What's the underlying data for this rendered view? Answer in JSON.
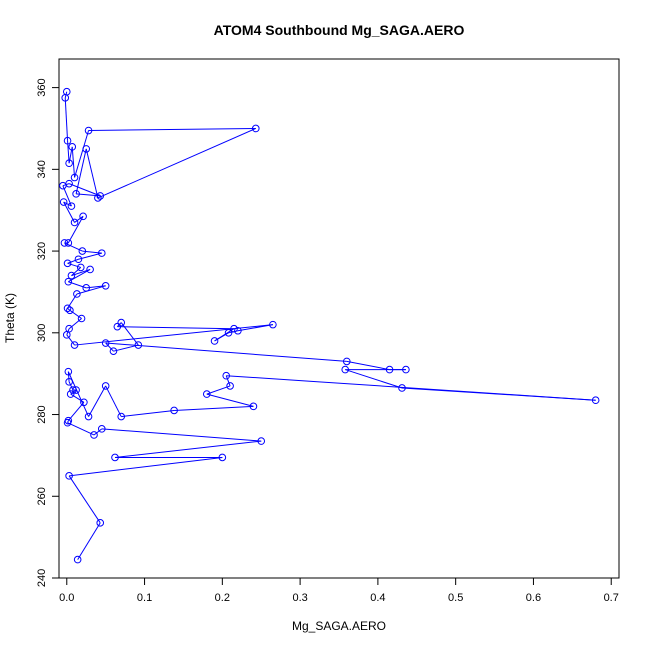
{
  "chart_data": {
    "type": "scatter",
    "title": "ATOM4 Southbound Mg_SAGA.AERO",
    "xlabel": "Mg_SAGA.AERO",
    "ylabel": "Theta (K)",
    "xlim": [
      -0.01,
      0.71
    ],
    "ylim": [
      240,
      367
    ],
    "xticks": [
      0.0,
      0.1,
      0.2,
      0.3,
      0.4,
      0.5,
      0.6,
      0.7
    ],
    "xtick_labels": [
      "0.0",
      "0.1",
      "0.2",
      "0.3",
      "0.4",
      "0.5",
      "0.6",
      "0.7"
    ],
    "yticks": [
      240,
      260,
      280,
      300,
      320,
      340,
      360
    ],
    "ytick_labels": [
      "240",
      "260",
      "280",
      "300",
      "320",
      "340",
      "360"
    ],
    "grid": false,
    "series_color": "#0000ff",
    "connected": true,
    "points": [
      [
        0.0,
        359.0
      ],
      [
        -0.002,
        357.5
      ],
      [
        0.001,
        347.0
      ],
      [
        0.003,
        341.5
      ],
      [
        0.007,
        345.5
      ],
      [
        0.01,
        338.0
      ],
      [
        0.028,
        349.5
      ],
      [
        0.243,
        350.0
      ],
      [
        0.04,
        333.0
      ],
      [
        0.025,
        345.0
      ],
      [
        0.012,
        334.0
      ],
      [
        0.043,
        333.5
      ],
      [
        0.003,
        336.5
      ],
      [
        -0.005,
        336.0
      ],
      [
        0.006,
        331.0
      ],
      [
        -0.004,
        332.0
      ],
      [
        0.01,
        327.0
      ],
      [
        0.021,
        328.5
      ],
      [
        0.002,
        322.0
      ],
      [
        -0.003,
        322.0
      ],
      [
        0.02,
        320.0
      ],
      [
        0.045,
        319.5
      ],
      [
        0.015,
        318.0
      ],
      [
        0.001,
        317.0
      ],
      [
        0.018,
        316.0
      ],
      [
        0.006,
        314.0
      ],
      [
        0.03,
        315.5
      ],
      [
        0.002,
        312.5
      ],
      [
        0.025,
        311.0
      ],
      [
        0.05,
        311.5
      ],
      [
        0.013,
        309.5
      ],
      [
        0.001,
        306.0
      ],
      [
        0.004,
        305.5
      ],
      [
        0.019,
        303.5
      ],
      [
        0.003,
        301.0
      ],
      [
        0.0,
        299.5
      ],
      [
        0.01,
        297.0
      ],
      [
        0.265,
        302.0
      ],
      [
        0.22,
        300.5
      ],
      [
        0.208,
        300.0
      ],
      [
        0.19,
        298.0
      ],
      [
        0.215,
        301.0
      ],
      [
        0.065,
        301.5
      ],
      [
        0.07,
        302.5
      ],
      [
        0.092,
        297.0
      ],
      [
        0.06,
        295.5
      ],
      [
        0.05,
        297.5
      ],
      [
        0.36,
        293.0
      ],
      [
        0.415,
        291.0
      ],
      [
        0.436,
        291.0
      ],
      [
        0.358,
        291.0
      ],
      [
        0.431,
        286.5
      ],
      [
        0.68,
        283.5
      ],
      [
        0.205,
        289.5
      ],
      [
        0.21,
        287.0
      ],
      [
        0.18,
        285.0
      ],
      [
        0.24,
        282.0
      ],
      [
        0.138,
        281.0
      ],
      [
        0.07,
        279.5
      ],
      [
        0.05,
        287.0
      ],
      [
        0.028,
        279.5
      ],
      [
        0.002,
        290.5
      ],
      [
        0.003,
        288.0
      ],
      [
        0.008,
        286.0
      ],
      [
        0.012,
        286.0
      ],
      [
        0.005,
        285.0
      ],
      [
        0.022,
        283.0
      ],
      [
        0.002,
        278.5
      ],
      [
        0.001,
        278.0
      ],
      [
        0.035,
        275.0
      ],
      [
        0.045,
        276.5
      ],
      [
        0.25,
        273.5
      ],
      [
        0.062,
        269.5
      ],
      [
        0.2,
        269.5
      ],
      [
        0.003,
        265.0
      ],
      [
        0.043,
        253.5
      ],
      [
        0.014,
        244.5
      ]
    ]
  }
}
